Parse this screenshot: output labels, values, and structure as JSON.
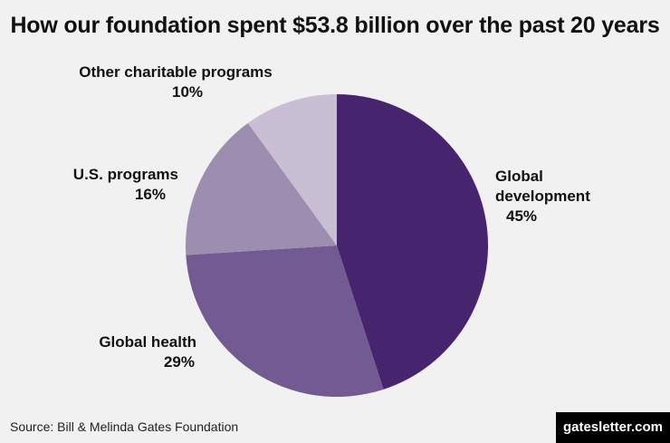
{
  "title": "How our foundation spent $53.8 billion over the past 20 years",
  "source": "Source: Bill & Melinda Gates Foundation",
  "brand": "gatesletter.com",
  "chart_data": {
    "type": "pie",
    "title": "How our foundation spent $53.8 billion over the past 20 years",
    "slices": [
      {
        "label_lines": [
          "Global",
          "development"
        ],
        "value_label": "45%",
        "value": 45,
        "color": "#46256e"
      },
      {
        "label_lines": [
          "Global health"
        ],
        "value_label": "29%",
        "value": 29,
        "color": "#725b92"
      },
      {
        "label_lines": [
          "U.S. programs"
        ],
        "value_label": "16%",
        "value": 16,
        "color": "#9d8db0"
      },
      {
        "label_lines": [
          "Other charitable programs"
        ],
        "value_label": "10%",
        "value": 10,
        "color": "#c8bfd4"
      }
    ],
    "start": "12 o'clock",
    "direction": "clockwise"
  }
}
